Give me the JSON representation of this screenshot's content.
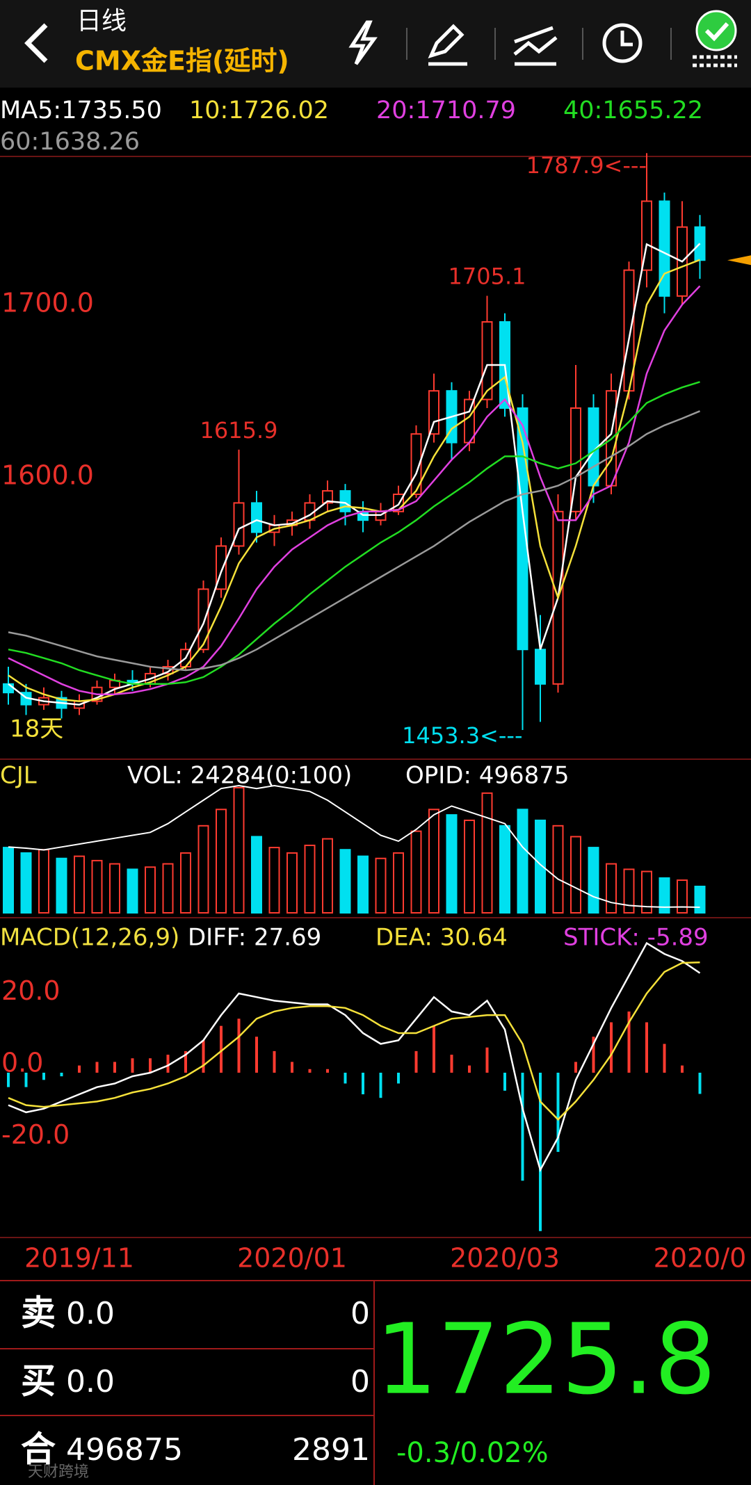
{
  "header": {
    "title": "日线",
    "subtitle": "CMX金E指(延时)"
  },
  "chart_data": [
    {
      "type": "candlestick",
      "categories": [
        null,
        null,
        null,
        null,
        "2019/11",
        null,
        null,
        null,
        null,
        null,
        null,
        null,
        null,
        null,
        null,
        null,
        "2020/01",
        null,
        null,
        null,
        null,
        null,
        null,
        null,
        null,
        null,
        null,
        null,
        "2020/03",
        null,
        null,
        null,
        null,
        null,
        null,
        null,
        null,
        null,
        null,
        "2020/0"
      ],
      "open": [
        1480,
        1475,
        1468,
        1472,
        1466,
        1470,
        1478,
        1482,
        1480,
        1486,
        1490,
        1500,
        1535,
        1560,
        1585,
        1568,
        1572,
        1575,
        1585,
        1592,
        1580,
        1575,
        1580,
        1590,
        1625,
        1650,
        1620,
        1645,
        1690,
        1640,
        1500,
        1480,
        1580,
        1640,
        1595,
        1650,
        1720,
        1760,
        1705,
        1745
      ],
      "high": [
        1490,
        1480,
        1478,
        1476,
        1474,
        1482,
        1486,
        1488,
        1490,
        1494,
        1504,
        1540,
        1565,
        1615.9,
        1592,
        1578,
        1580,
        1590,
        1598,
        1596,
        1586,
        1585,
        1595,
        1630,
        1660,
        1655,
        1650,
        1705.1,
        1695,
        1648,
        1520,
        1590,
        1665,
        1648,
        1660,
        1725,
        1787.9,
        1765,
        1760,
        1752
      ],
      "low": [
        1468,
        1462,
        1465,
        1460,
        1462,
        1468,
        1474,
        1476,
        1478,
        1482,
        1488,
        1498,
        1530,
        1555,
        1562,
        1560,
        1566,
        1570,
        1580,
        1572,
        1568,
        1572,
        1578,
        1588,
        1620,
        1610,
        1615,
        1640,
        1635,
        1453.3,
        1458,
        1475,
        1575,
        1585,
        1590,
        1645,
        1710,
        1695,
        1700,
        1715
      ],
      "close": [
        1475,
        1468,
        1472,
        1466,
        1470,
        1478,
        1482,
        1480,
        1486,
        1490,
        1500,
        1535,
        1560,
        1585,
        1568,
        1572,
        1575,
        1585,
        1592,
        1580,
        1575,
        1580,
        1590,
        1625,
        1650,
        1620,
        1645,
        1690,
        1640,
        1500,
        1480,
        1580,
        1640,
        1595,
        1650,
        1720,
        1760,
        1705,
        1745,
        1725.8
      ],
      "up_color": "#ff3b30",
      "down_color": "#00e0f0",
      "ylim": [
        1440,
        1790
      ],
      "yticks": [
        {
          "value": 1600,
          "label": "1600.0"
        },
        {
          "value": 1700,
          "label": "1700.0"
        }
      ],
      "series": [
        {
          "name": "MA5:1735.50",
          "color": "#ffffff",
          "values": [
            1480,
            1472,
            1470,
            1469,
            1468,
            1472,
            1477,
            1480,
            1483,
            1487,
            1495,
            1515,
            1545,
            1570,
            1575,
            1572,
            1573,
            1578,
            1586,
            1585,
            1578,
            1578,
            1584,
            1602,
            1632,
            1635,
            1638,
            1665,
            1665,
            1580,
            1500,
            1530,
            1600,
            1615,
            1625,
            1680,
            1735,
            1730,
            1725,
            1735.5
          ]
        },
        {
          "name": "10:1726.02",
          "color": "#f5e13a",
          "values": [
            1485,
            1478,
            1474,
            1471,
            1470,
            1471,
            1474,
            1478,
            1481,
            1485,
            1490,
            1503,
            1525,
            1550,
            1565,
            1570,
            1572,
            1575,
            1580,
            1583,
            1582,
            1580,
            1581,
            1592,
            1612,
            1628,
            1635,
            1650,
            1658,
            1620,
            1560,
            1530,
            1560,
            1595,
            1610,
            1650,
            1700,
            1718,
            1722,
            1726.02
          ]
        },
        {
          "name": "20:1710.79",
          "color": "#e040e0",
          "values": [
            1495,
            1490,
            1485,
            1480,
            1476,
            1474,
            1474,
            1475,
            1477,
            1480,
            1484,
            1490,
            1502,
            1518,
            1535,
            1548,
            1558,
            1565,
            1572,
            1577,
            1580,
            1580,
            1581,
            1586,
            1598,
            1610,
            1620,
            1635,
            1645,
            1630,
            1600,
            1575,
            1575,
            1590,
            1595,
            1620,
            1660,
            1685,
            1700,
            1710.79
          ]
        },
        {
          "name": "40:1655.22",
          "color": "#22dd22",
          "values": [
            1500,
            1498,
            1495,
            1492,
            1488,
            1485,
            1482,
            1480,
            1480,
            1480,
            1481,
            1484,
            1490,
            1497,
            1506,
            1515,
            1523,
            1532,
            1540,
            1548,
            1555,
            1562,
            1568,
            1575,
            1583,
            1590,
            1597,
            1605,
            1612,
            1612,
            1608,
            1605,
            1608,
            1615,
            1622,
            1632,
            1643,
            1648,
            1652,
            1655.22
          ]
        },
        {
          "name": "60:1638.26",
          "color": "#9a9a9a",
          "values": [
            1510,
            1508,
            1505,
            1502,
            1499,
            1496,
            1494,
            1492,
            1490,
            1489,
            1488,
            1489,
            1491,
            1495,
            1500,
            1506,
            1512,
            1518,
            1524,
            1530,
            1536,
            1542,
            1548,
            1554,
            1560,
            1567,
            1574,
            1580,
            1586,
            1590,
            1592,
            1595,
            1600,
            1606,
            1612,
            1618,
            1625,
            1630,
            1634,
            1638.26
          ]
        }
      ],
      "annotations": [
        {
          "value": 1787.9,
          "label": "1787.9<---"
        },
        {
          "value": 1705.1,
          "label": "1705.1"
        },
        {
          "value": 1615.9,
          "label": "1615.9"
        },
        {
          "value": 1453.3,
          "label": "1453.3<---"
        }
      ],
      "period_label": "18天"
    },
    {
      "type": "volume",
      "title": "CJL",
      "series": [
        {
          "name": "VOL: 24284(0:100)",
          "color": "#ffffff",
          "values": [
            60000,
            55000,
            58000,
            50000,
            52000,
            48000,
            45000,
            40000,
            42000,
            45000,
            55000,
            80000,
            95000,
            115000,
            70000,
            60000,
            55000,
            62000,
            68000,
            58000,
            52000,
            50000,
            55000,
            75000,
            95000,
            90000,
            85000,
            110000,
            80000,
            95000,
            85000,
            80000,
            70000,
            60000,
            45000,
            40000,
            38000,
            32000,
            30000,
            24284
          ]
        },
        {
          "name": "OPID: 496875",
          "color": "#ffffff",
          "values": [
            600000,
            598000,
            595000,
            600000,
            605000,
            610000,
            615000,
            620000,
            625000,
            640000,
            660000,
            680000,
            700000,
            705000,
            700000,
            705000,
            700000,
            695000,
            680000,
            660000,
            640000,
            620000,
            610000,
            630000,
            655000,
            670000,
            660000,
            650000,
            640000,
            600000,
            570000,
            545000,
            530000,
            515000,
            505000,
            500000,
            498000,
            497000,
            497500,
            496875
          ]
        }
      ]
    },
    {
      "type": "macd",
      "title": "MACD(12,26,9)",
      "ylim": [
        -45.2,
        36.3
      ],
      "yticks": [
        {
          "value": 20,
          "label": "20.0"
        },
        {
          "value": 0,
          "label": "0.0"
        },
        {
          "value": -20,
          "label": "-20.0"
        }
      ],
      "up_color": "#ff3b30",
      "down_color": "#00e0f0",
      "series": [
        {
          "name": "DIFF: 27.69",
          "color": "#ffffff",
          "values": [
            -9,
            -11,
            -10,
            -8,
            -6,
            -4,
            -3,
            -1,
            0,
            2,
            5,
            9,
            16,
            22,
            21,
            20,
            19.5,
            19,
            19,
            16,
            11,
            8,
            9,
            15,
            21,
            17,
            16,
            20,
            12,
            -10,
            -27,
            -18,
            -2,
            8,
            18,
            27,
            36,
            33,
            31,
            27.69
          ]
        },
        {
          "name": "DEA: 30.64",
          "color": "#f5e13a",
          "values": [
            -7,
            -9,
            -9.5,
            -9,
            -8.5,
            -8,
            -7,
            -5.5,
            -4.5,
            -3,
            -1,
            2,
            6,
            10,
            15,
            17,
            18,
            18.5,
            18.5,
            18,
            16,
            13,
            11,
            11,
            13,
            15,
            15.5,
            16,
            16,
            8,
            -8,
            -13,
            -8,
            -2,
            5,
            14,
            22,
            28,
            30.5,
            30.64
          ]
        },
        {
          "name": "STICK: -5.89",
          "color": "#e040e0",
          "values": [
            -4,
            -4,
            -2,
            -1,
            2,
            3,
            3,
            4,
            4,
            5,
            6,
            9,
            13,
            15,
            10,
            6,
            3,
            1,
            1,
            -3,
            -6,
            -7,
            -3,
            6,
            13,
            5,
            2,
            7,
            -5,
            -30,
            -44,
            -22,
            3,
            10,
            14,
            17,
            14,
            8,
            2,
            -5.89
          ]
        }
      ]
    }
  ],
  "quote": {
    "rows": [
      {
        "label": "卖",
        "price": "0.0",
        "volume": 0
      },
      {
        "label": "买",
        "price": "0.0",
        "volume": 0
      },
      {
        "label": "合",
        "price": 496875,
        "volume": 2891
      }
    ],
    "last": 1725.8,
    "change": "-0.3/0.02%",
    "watermark": "天财跨境"
  }
}
